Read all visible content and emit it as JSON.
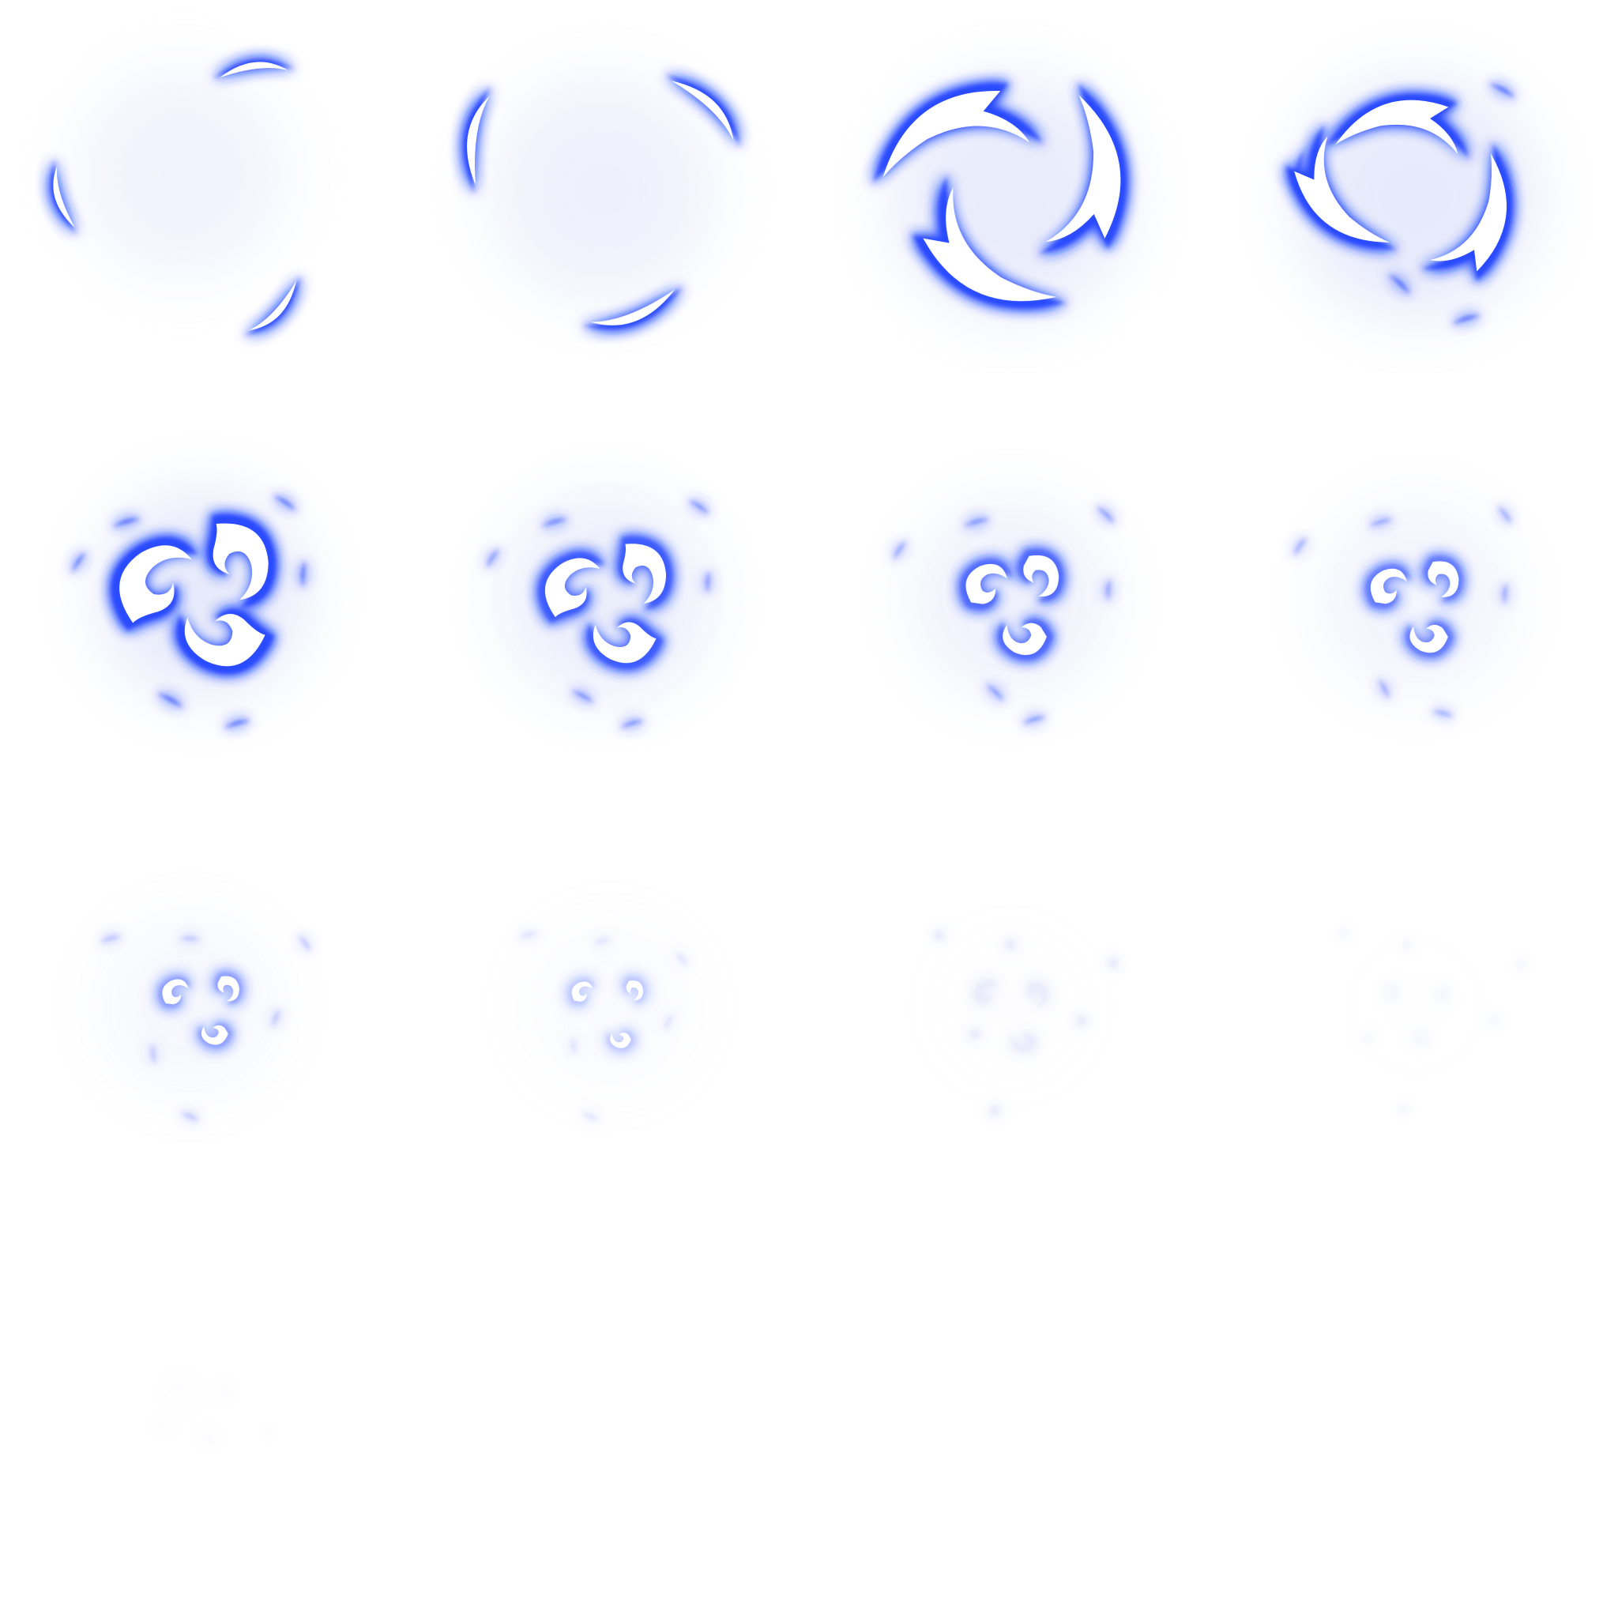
{
  "sheet": {
    "columns": 4,
    "rows": 4,
    "frame_count": 13,
    "background": "#ffffff",
    "glow_color": "#2b4cff",
    "core_color": "#ffffff",
    "halo_color": "#c9d2f5"
  },
  "frames": [
    {
      "name": "frame-01",
      "stage": "scattered-crescents",
      "opacity": 1.0
    },
    {
      "name": "frame-02",
      "stage": "converging-crescents",
      "opacity": 1.0
    },
    {
      "name": "frame-03",
      "stage": "full-vortex",
      "opacity": 1.0
    },
    {
      "name": "frame-04",
      "stage": "tightening-vortex",
      "opacity": 1.0
    },
    {
      "name": "frame-05",
      "stage": "triple-swirl-bright",
      "opacity": 1.0
    },
    {
      "name": "frame-06",
      "stage": "triple-swirl",
      "opacity": 0.95
    },
    {
      "name": "frame-07",
      "stage": "triple-swirl-curling",
      "opacity": 0.9
    },
    {
      "name": "frame-08",
      "stage": "triple-swirl-curled",
      "opacity": 0.85
    },
    {
      "name": "frame-09",
      "stage": "fading-swirls",
      "opacity": 0.7
    },
    {
      "name": "frame-10",
      "stage": "fading-swirls-small",
      "opacity": 0.55
    },
    {
      "name": "frame-11",
      "stage": "dissipating",
      "opacity": 0.35
    },
    {
      "name": "frame-12",
      "stage": "dissipating-faint",
      "opacity": 0.22
    },
    {
      "name": "frame-13",
      "stage": "final-wisp",
      "opacity": 0.12
    }
  ]
}
